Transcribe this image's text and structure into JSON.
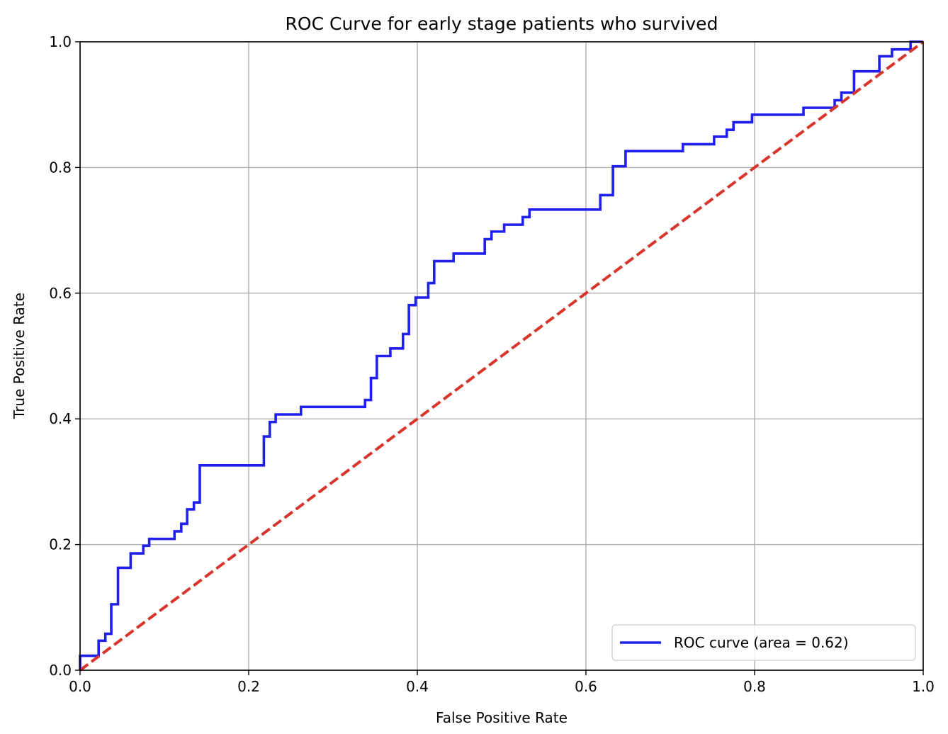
{
  "chart_data": {
    "type": "line",
    "title": "ROC Curve for early stage patients who survived",
    "xlabel": "False Positive Rate",
    "ylabel": "True Positive Rate",
    "xlim": [
      0.0,
      1.0
    ],
    "ylim": [
      0.0,
      1.0
    ],
    "xticks": [
      "0.0",
      "0.2",
      "0.4",
      "0.6",
      "0.8",
      "1.0"
    ],
    "yticks": [
      "0.0",
      "0.2",
      "0.4",
      "0.6",
      "0.8",
      "1.0"
    ],
    "grid": true,
    "legend_position": "lower right",
    "series": [
      {
        "name": "ROC curve (area = 0.62)",
        "color": "#2020ee",
        "style": "solid-step",
        "points": [
          [
            0.0,
            0.0
          ],
          [
            0.0,
            0.023
          ],
          [
            0.022,
            0.023
          ],
          [
            0.022,
            0.047
          ],
          [
            0.03,
            0.047
          ],
          [
            0.03,
            0.058
          ],
          [
            0.037,
            0.058
          ],
          [
            0.037,
            0.105
          ],
          [
            0.045,
            0.105
          ],
          [
            0.045,
            0.163
          ],
          [
            0.06,
            0.163
          ],
          [
            0.06,
            0.186
          ],
          [
            0.075,
            0.186
          ],
          [
            0.075,
            0.198
          ],
          [
            0.082,
            0.198
          ],
          [
            0.082,
            0.209
          ],
          [
            0.112,
            0.209
          ],
          [
            0.112,
            0.221
          ],
          [
            0.12,
            0.221
          ],
          [
            0.12,
            0.233
          ],
          [
            0.127,
            0.233
          ],
          [
            0.127,
            0.256
          ],
          [
            0.135,
            0.256
          ],
          [
            0.135,
            0.267
          ],
          [
            0.142,
            0.267
          ],
          [
            0.142,
            0.326
          ],
          [
            0.218,
            0.326
          ],
          [
            0.218,
            0.372
          ],
          [
            0.225,
            0.372
          ],
          [
            0.225,
            0.395
          ],
          [
            0.232,
            0.395
          ],
          [
            0.232,
            0.407
          ],
          [
            0.262,
            0.407
          ],
          [
            0.262,
            0.419
          ],
          [
            0.338,
            0.419
          ],
          [
            0.338,
            0.43
          ],
          [
            0.345,
            0.43
          ],
          [
            0.345,
            0.465
          ],
          [
            0.352,
            0.465
          ],
          [
            0.352,
            0.5
          ],
          [
            0.368,
            0.5
          ],
          [
            0.368,
            0.512
          ],
          [
            0.383,
            0.512
          ],
          [
            0.383,
            0.535
          ],
          [
            0.39,
            0.535
          ],
          [
            0.39,
            0.581
          ],
          [
            0.398,
            0.581
          ],
          [
            0.398,
            0.593
          ],
          [
            0.413,
            0.593
          ],
          [
            0.413,
            0.616
          ],
          [
            0.42,
            0.616
          ],
          [
            0.42,
            0.651
          ],
          [
            0.443,
            0.651
          ],
          [
            0.443,
            0.663
          ],
          [
            0.48,
            0.663
          ],
          [
            0.48,
            0.686
          ],
          [
            0.488,
            0.686
          ],
          [
            0.488,
            0.698
          ],
          [
            0.503,
            0.698
          ],
          [
            0.503,
            0.709
          ],
          [
            0.525,
            0.709
          ],
          [
            0.525,
            0.721
          ],
          [
            0.533,
            0.721
          ],
          [
            0.533,
            0.733
          ],
          [
            0.617,
            0.733
          ],
          [
            0.617,
            0.756
          ],
          [
            0.632,
            0.756
          ],
          [
            0.632,
            0.802
          ],
          [
            0.647,
            0.802
          ],
          [
            0.647,
            0.826
          ],
          [
            0.715,
            0.826
          ],
          [
            0.715,
            0.837
          ],
          [
            0.752,
            0.837
          ],
          [
            0.752,
            0.849
          ],
          [
            0.767,
            0.849
          ],
          [
            0.767,
            0.86
          ],
          [
            0.775,
            0.86
          ],
          [
            0.775,
            0.872
          ],
          [
            0.797,
            0.872
          ],
          [
            0.797,
            0.884
          ],
          [
            0.858,
            0.884
          ],
          [
            0.858,
            0.895
          ],
          [
            0.895,
            0.895
          ],
          [
            0.895,
            0.907
          ],
          [
            0.903,
            0.907
          ],
          [
            0.903,
            0.919
          ],
          [
            0.918,
            0.919
          ],
          [
            0.918,
            0.953
          ],
          [
            0.948,
            0.953
          ],
          [
            0.948,
            0.977
          ],
          [
            0.963,
            0.977
          ],
          [
            0.963,
            0.988
          ],
          [
            0.985,
            0.988
          ],
          [
            0.985,
            1.0
          ],
          [
            1.0,
            1.0
          ]
        ]
      },
      {
        "name": "",
        "color": "#d9342b",
        "style": "dashed",
        "points": [
          [
            0.0,
            0.0
          ],
          [
            1.0,
            1.0
          ]
        ]
      }
    ]
  }
}
